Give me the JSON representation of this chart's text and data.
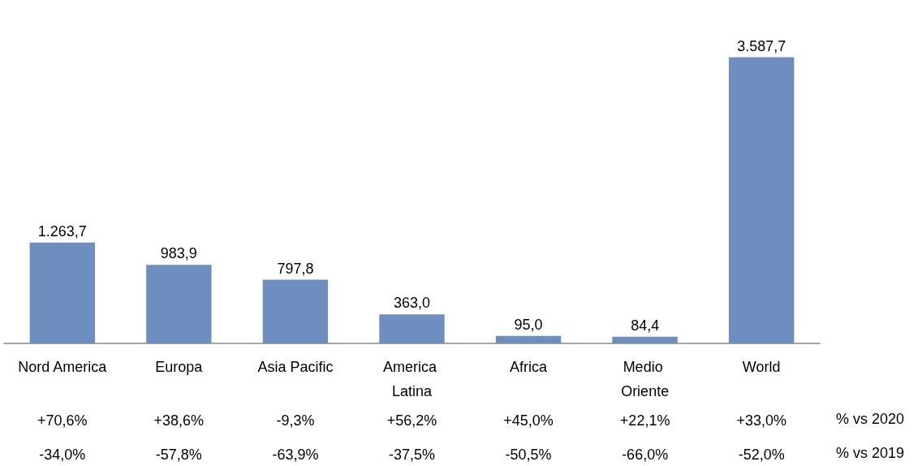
{
  "chart_data": {
    "type": "bar",
    "categories": [
      "Nord America",
      "Europa",
      "Asia Pacific",
      "America Latina",
      "Africa",
      "Medio Oriente",
      "World"
    ],
    "values": [
      1263.7,
      983.9,
      797.8,
      363.0,
      95.0,
      84.4,
      3587.7
    ],
    "value_labels": [
      "1.263,7",
      "983,9",
      "797,8",
      "363,0",
      "95,0",
      "84,4",
      "3.587,7"
    ],
    "color": "#6d8ebf",
    "annotations": [
      "+70,6%",
      "+38,6%",
      "-9,3%",
      "+56,2%",
      "+45,0%",
      "+22,1%",
      "+33,0%",
      "% vs 2020",
      "-34,0%",
      "-57,8%",
      "-63,9%",
      "-37,5%",
      "-50,5%",
      "-66,0%",
      "-52,0%",
      "% vs 2019"
    ]
  }
}
